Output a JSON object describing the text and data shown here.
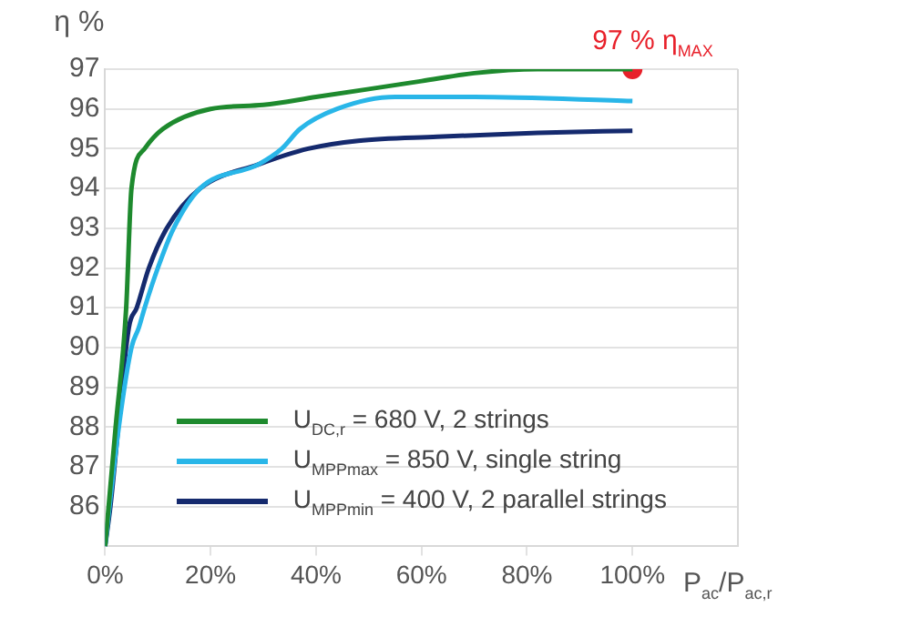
{
  "chart_data": {
    "type": "line",
    "ylabel": "η %",
    "xlabel": "P$_{ac}$/P$_{ac,r}$",
    "xlim": [
      0,
      120
    ],
    "ylim": [
      85,
      97
    ],
    "xticks": [
      {
        "value": 0,
        "label": "0%"
      },
      {
        "value": 20,
        "label": "20%"
      },
      {
        "value": 40,
        "label": "40%"
      },
      {
        "value": 60,
        "label": "60%"
      },
      {
        "value": 80,
        "label": "80%"
      },
      {
        "value": 100,
        "label": "100%"
      }
    ],
    "yticks": [
      86,
      87,
      88,
      89,
      90,
      91,
      92,
      93,
      94,
      95,
      96,
      97
    ],
    "grid": "y",
    "legend": "bottom",
    "annotations": [
      {
        "text": "97 % η$_{MAX}$",
        "x": 100,
        "y": 97
      }
    ],
    "series": [
      {
        "name": "U$_{DC,r}$ = 680 V, 2 strings",
        "color": "#1e8a2e",
        "x": [
          0,
          2,
          4,
          5,
          7.5,
          11,
          20,
          30,
          40,
          50,
          60,
          70,
          82,
          100
        ],
        "values": [
          85,
          88,
          91,
          94,
          95,
          95.5,
          96,
          96.1,
          96.3,
          96.5,
          96.7,
          96.9,
          97,
          97
        ]
      },
      {
        "name": "U$_{MPPmax}$ = 850 V, single string",
        "color": "#29b6e8",
        "x": [
          0,
          2.6,
          5,
          6.4,
          7.5,
          10,
          13,
          18,
          29,
          33.5,
          37,
          44,
          55,
          70,
          100
        ],
        "values": [
          85,
          88,
          90,
          90.5,
          91,
          92,
          93,
          94,
          94.6,
          95,
          95.5,
          96,
          96.3,
          96.3,
          96.2
        ]
      },
      {
        "name": "U$_{MPPmin}$ = 400 V, 2 parallel strings",
        "color": "#152a6e",
        "x": [
          0,
          1,
          4.5,
          6,
          8.3,
          11.7,
          18,
          29,
          38.5,
          48,
          63,
          82,
          100
        ],
        "values": [
          85,
          86,
          90.5,
          91,
          92,
          93,
          94,
          94.6,
          95,
          95.2,
          95.3,
          95.4,
          95.45
        ]
      },
      {
        "type": "scatter",
        "marker": "circle",
        "color": "#e8202a",
        "x": [
          100
        ],
        "values": [
          97
        ]
      }
    ]
  }
}
